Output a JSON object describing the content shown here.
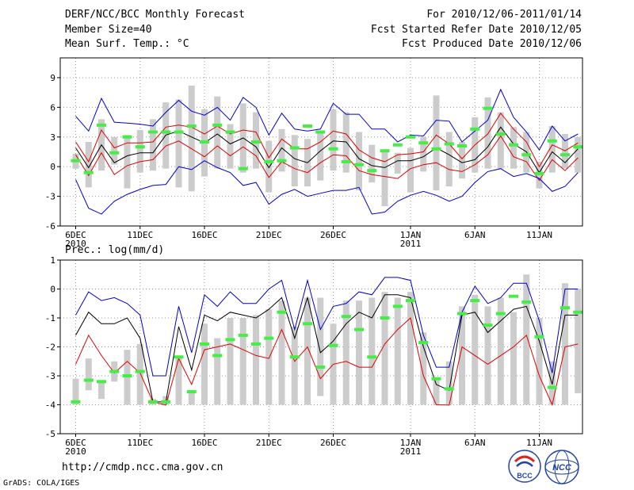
{
  "header": {
    "title": "DERF/NCC/BCC Monthly Forecast",
    "member_size": "Member Size=40",
    "variable": "Mean Surf. Temp.: °C",
    "for_period": "For 2010/12/06-2011/01/14",
    "fcst_started": "Fcst Started Refer Date 2010/12/05",
    "fcst_produced": "Fcst Produced Date 2010/12/06"
  },
  "footer": {
    "url": "http://cmdp.ncc.cma.gov.cn",
    "credit": "GrADS: COLA/IGES",
    "logo_bcc": "BCC",
    "logo_ncc": "NCC"
  },
  "colors": {
    "box": "#cccccc",
    "obs": "#44ee44",
    "max_min": "#0000cc",
    "spread": "#dd0000",
    "mean": "#000000"
  },
  "chart_data": [
    {
      "type": "box-line",
      "title": "Mean Surf. Temp.: °C",
      "ylim": [
        -6,
        11
      ],
      "yticks": [
        -6,
        -3,
        0,
        3,
        6,
        9
      ],
      "x": [
        0,
        1,
        2,
        3,
        4,
        5,
        6,
        7,
        8,
        9,
        10,
        11,
        12,
        13,
        14,
        15,
        16,
        17,
        18,
        19,
        20,
        21,
        22,
        23,
        24,
        25,
        26,
        27,
        28,
        29,
        30,
        31,
        32,
        33,
        34,
        35,
        36,
        37,
        38,
        39
      ],
      "xticks": [
        {
          "x": 0,
          "label": "6DEC",
          "sub": "2010"
        },
        {
          "x": 5,
          "label": "11DEC",
          "sub": ""
        },
        {
          "x": 10,
          "label": "16DEC",
          "sub": ""
        },
        {
          "x": 15,
          "label": "21DEC",
          "sub": ""
        },
        {
          "x": 20,
          "label": "26DEC",
          "sub": ""
        },
        {
          "x": 26,
          "label": "1JAN",
          "sub": "2011"
        },
        {
          "x": 31,
          "label": "6JAN",
          "sub": ""
        },
        {
          "x": 36,
          "label": "11JAN",
          "sub": ""
        }
      ],
      "box_low": [
        -0.2,
        -2.1,
        -0.4,
        0.2,
        -2.2,
        -0.6,
        -0.4,
        -0.2,
        -2.1,
        -2.5,
        -1.0,
        -0.2,
        -0.2,
        -0.6,
        -0.2,
        -2.6,
        -0.5,
        -2.0,
        -2.0,
        -1.4,
        -0.4,
        -0.6,
        -2.4,
        -1.6,
        -4.0,
        -0.7,
        -2.6,
        -0.5,
        -2.4,
        -2.0,
        -1.2,
        -0.6,
        -0.2,
        -0.2,
        -0.2,
        -0.6,
        -2.2,
        -0.6,
        -0.2,
        -0.6
      ],
      "box_high": [
        1.3,
        2.5,
        4.8,
        3.0,
        3.2,
        3.7,
        4.8,
        6.5,
        6.8,
        8.2,
        5.8,
        7.1,
        4.3,
        6.4,
        5.5,
        2.6,
        3.8,
        3.2,
        2.8,
        3.5,
        5.8,
        5.5,
        3.5,
        2.2,
        1.5,
        1.4,
        1.9,
        3.0,
        7.2,
        3.5,
        2.5,
        5.0,
        7.0,
        5.5,
        4.0,
        3.5,
        0.5,
        4.1,
        3.3,
        3.0
      ],
      "obs": [
        0.6,
        -0.6,
        4.2,
        1.4,
        3.0,
        2.0,
        3.5,
        3.5,
        3.5,
        4.1,
        2.5,
        4.2,
        3.5,
        -0.2,
        2.5,
        0.5,
        0.6,
        1.9,
        4.1,
        3.5,
        1.8,
        0.5,
        0.2,
        -0.4,
        1.6,
        2.2,
        3.0,
        2.4,
        1.8,
        2.3,
        2.1,
        3.8,
        5.9,
        3.3,
        2.2,
        1.2,
        -0.7,
        2.6,
        1.2,
        2.0
      ],
      "series": [
        {
          "name": "max",
          "color": "#0000cc",
          "values": [
            5.1,
            3.6,
            6.9,
            4.5,
            4.4,
            4.3,
            4.1,
            5.5,
            6.7,
            5.6,
            5.2,
            6.0,
            4.7,
            7.0,
            6.0,
            3.2,
            5.4,
            3.8,
            3.6,
            3.8,
            6.4,
            5.3,
            5.3,
            3.8,
            3.8,
            2.5,
            3.2,
            3.1,
            4.7,
            4.6,
            2.5,
            3.6,
            4.7,
            7.8,
            5.0,
            3.5,
            1.7,
            4.1,
            2.6,
            3.3
          ]
        },
        {
          "name": "spread_high",
          "color": "#dd0000",
          "values": [
            2.5,
            0.5,
            3.7,
            1.9,
            2.4,
            2.4,
            2.5,
            4.0,
            4.2,
            4.0,
            3.3,
            4.1,
            3.3,
            3.7,
            3.5,
            0.9,
            2.8,
            1.8,
            1.8,
            2.5,
            3.6,
            3.3,
            1.7,
            0.9,
            0.5,
            1.2,
            1.3,
            1.5,
            3.2,
            2.3,
            0.8,
            2.2,
            3.3,
            5.4,
            3.8,
            2.5,
            0.0,
            2.2,
            1.6,
            2.4
          ]
        },
        {
          "name": "mean",
          "color": "#000000",
          "values": [
            1.9,
            -0.1,
            2.2,
            0.4,
            1.1,
            1.4,
            1.4,
            3.2,
            3.6,
            3.0,
            2.4,
            3.3,
            2.3,
            2.9,
            2.0,
            -0.1,
            1.9,
            0.8,
            0.4,
            1.6,
            2.6,
            2.5,
            0.8,
            0.1,
            -0.1,
            0.6,
            0.6,
            1.0,
            1.9,
            1.2,
            0.4,
            0.7,
            2.0,
            4.0,
            2.3,
            1.5,
            -0.6,
            1.5,
            0.4,
            1.8
          ]
        },
        {
          "name": "spread_low",
          "color": "#dd0000",
          "values": [
            1.2,
            -0.9,
            1.4,
            -0.8,
            0.1,
            0.5,
            0.7,
            2.1,
            2.6,
            1.8,
            1.0,
            2.1,
            1.1,
            2.0,
            1.1,
            -1.1,
            0.5,
            -0.2,
            -0.6,
            0.4,
            1.2,
            1.1,
            -0.4,
            -0.8,
            -1.0,
            -1.2,
            -0.2,
            0.2,
            0.4,
            -0.3,
            -0.5,
            0.2,
            1.2,
            3.1,
            1.0,
            0.5,
            -1.4,
            0.7,
            -0.4,
            0.9
          ]
        },
        {
          "name": "min",
          "color": "#0000cc",
          "values": [
            -1.3,
            -4.2,
            -4.8,
            -3.5,
            -2.8,
            -2.3,
            -1.9,
            -1.8,
            0.0,
            -0.3,
            0.6,
            -0.1,
            -0.6,
            -1.9,
            -1.6,
            -3.8,
            -2.8,
            -2.3,
            -3.0,
            -2.7,
            -2.4,
            -2.4,
            -2.1,
            -4.8,
            -4.6,
            -3.5,
            -2.9,
            -2.5,
            -2.9,
            -3.5,
            -3.0,
            -1.6,
            -0.5,
            -0.2,
            -1.0,
            -0.7,
            -1.2,
            -2.5,
            -2.0,
            -0.6
          ]
        }
      ]
    },
    {
      "type": "box-line",
      "title": "Prec.: log(mm/d)",
      "ylim": [
        -5,
        1
      ],
      "yticks": [
        -5,
        -4,
        -3,
        -2,
        -1,
        0,
        1
      ],
      "x": [
        0,
        1,
        2,
        3,
        4,
        5,
        6,
        7,
        8,
        9,
        10,
        11,
        12,
        13,
        14,
        15,
        16,
        17,
        18,
        19,
        20,
        21,
        22,
        23,
        24,
        25,
        26,
        27,
        28,
        29,
        30,
        31,
        32,
        33,
        34,
        35,
        36,
        37,
        38,
        39
      ],
      "xticks": [
        {
          "x": 0,
          "label": "6DEC",
          "sub": "2010"
        },
        {
          "x": 5,
          "label": "11DEC",
          "sub": ""
        },
        {
          "x": 10,
          "label": "16DEC",
          "sub": ""
        },
        {
          "x": 15,
          "label": "21DEC",
          "sub": ""
        },
        {
          "x": 20,
          "label": "26DEC",
          "sub": ""
        },
        {
          "x": 26,
          "label": "1JAN",
          "sub": "2011"
        },
        {
          "x": 31,
          "label": "6JAN",
          "sub": ""
        },
        {
          "x": 36,
          "label": "11JAN",
          "sub": ""
        }
      ],
      "box_low": [
        -4.0,
        -3.5,
        -3.8,
        -3.2,
        -4.0,
        -4.0,
        -4.0,
        -4.0,
        -4.0,
        -4.0,
        -4.0,
        -4.0,
        -4.0,
        -4.0,
        -4.0,
        -4.0,
        -4.0,
        -4.0,
        -4.0,
        -3.7,
        -4.0,
        -4.0,
        -4.0,
        -4.0,
        -4.0,
        -4.0,
        -4.0,
        -4.0,
        -4.0,
        -4.0,
        -4.0,
        -4.0,
        -4.0,
        -4.0,
        -4.0,
        -4.0,
        -4.0,
        -4.0,
        -4.0,
        -3.6
      ],
      "box_high": [
        -3.1,
        -2.4,
        -3.2,
        -2.5,
        -2.1,
        -1.9,
        -3.8,
        -3.7,
        -2.3,
        -3.5,
        -1.2,
        -1.7,
        -1.0,
        -1.0,
        -0.9,
        -0.7,
        -0.4,
        -1.3,
        -0.3,
        -0.3,
        -1.2,
        -0.4,
        -0.4,
        -0.3,
        -0.1,
        -0.3,
        -0.1,
        -1.5,
        -3.1,
        -2.5,
        -0.6,
        -0.2,
        -0.6,
        -0.3,
        -0.8,
        0.5,
        -1.0,
        -2.5,
        0.2,
        0.0
      ],
      "obs": [
        -3.9,
        -3.15,
        -3.2,
        -2.85,
        -3.0,
        -2.85,
        -3.9,
        -3.9,
        -2.35,
        -3.55,
        -1.9,
        -2.3,
        -1.75,
        -1.6,
        -1.9,
        -1.7,
        -0.8,
        -2.35,
        -1.2,
        -2.7,
        -1.95,
        -0.95,
        -1.4,
        -2.35,
        -1.0,
        -0.6,
        -0.4,
        -1.85,
        -3.1,
        -3.45,
        -0.85,
        -0.4,
        -1.25,
        -0.85,
        -0.25,
        -0.45,
        -1.65,
        -3.4,
        -0.65,
        -0.8
      ],
      "series": [
        {
          "name": "max",
          "color": "#0000cc",
          "values": [
            -0.9,
            -0.1,
            -0.4,
            -0.3,
            -0.5,
            -0.9,
            -3.0,
            -3.0,
            -0.6,
            -2.2,
            -0.2,
            -0.6,
            -0.1,
            -0.5,
            -0.5,
            0.0,
            0.3,
            -1.4,
            0.3,
            -1.4,
            -0.6,
            -0.5,
            -0.1,
            -0.2,
            0.4,
            0.4,
            0.3,
            -1.6,
            -2.7,
            -2.7,
            -0.8,
            0.1,
            -0.5,
            -0.3,
            0.2,
            0.2,
            -1.1,
            -2.9,
            0.0,
            0.0
          ]
        },
        {
          "name": "mean",
          "color": "#000000",
          "values": [
            -1.6,
            -0.8,
            -1.2,
            -1.2,
            -1.0,
            -1.7,
            -3.9,
            -3.9,
            -1.3,
            -2.8,
            -0.9,
            -1.1,
            -0.8,
            -0.9,
            -1.0,
            -0.7,
            -0.3,
            -1.7,
            -0.3,
            -2.2,
            -1.8,
            -1.2,
            -0.8,
            -1.0,
            -0.2,
            -0.2,
            -0.3,
            -2.0,
            -3.3,
            -3.5,
            -0.9,
            -0.8,
            -1.5,
            -1.1,
            -0.7,
            -0.6,
            -1.8,
            -3.3,
            -0.9,
            -0.9
          ]
        },
        {
          "name": "spread",
          "color": "#dd0000",
          "values": [
            -2.6,
            -1.6,
            -2.3,
            -2.9,
            -2.5,
            -2.9,
            -3.9,
            -4.1,
            -2.4,
            -3.3,
            -2.1,
            -2.0,
            -1.9,
            -2.1,
            -2.3,
            -2.4,
            -1.4,
            -2.5,
            -2.0,
            -3.1,
            -2.6,
            -2.5,
            -2.7,
            -2.7,
            -1.9,
            -1.4,
            -1.0,
            -3.0,
            -4.0,
            -4.3,
            -2.0,
            -2.3,
            -2.6,
            -2.3,
            -2.0,
            -1.6,
            -3.0,
            -4.0,
            -2.0,
            -1.9
          ]
        }
      ]
    }
  ]
}
